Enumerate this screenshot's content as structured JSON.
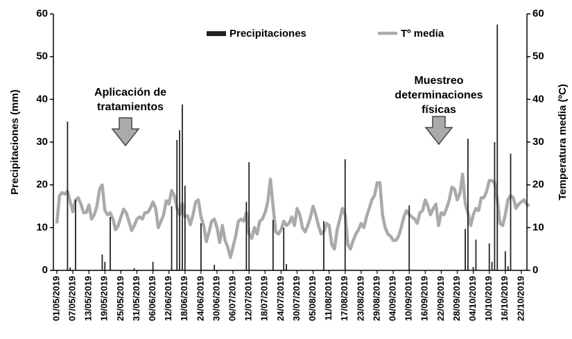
{
  "chart_data": {
    "type": "bar",
    "ylabel": "Precipitaciones (mm)",
    "y2label": "Temperatura media (ºC)",
    "ylim": [
      0,
      60
    ],
    "yticks": [
      0,
      10,
      20,
      30,
      40,
      50,
      60
    ],
    "y2lim": [
      0,
      60
    ],
    "y2ticks": [
      0,
      10,
      20,
      30,
      40,
      50,
      60
    ],
    "legend": "top",
    "annotations": [
      [
        "Aplicación de",
        "tratamientos"
      ],
      [
        "Muestreo",
        "determinaciones",
        "físicas"
      ]
    ],
    "categories": [
      "01/05/2019",
      null,
      null,
      null,
      null,
      null,
      "07/05/2019",
      null,
      null,
      null,
      null,
      null,
      "13/05/2019",
      null,
      null,
      null,
      null,
      null,
      "19/05/2019",
      null,
      null,
      null,
      null,
      null,
      "25/05/2019",
      null,
      null,
      null,
      null,
      null,
      "31/05/2019",
      null,
      null,
      null,
      null,
      null,
      "06/06/2019",
      null,
      null,
      null,
      null,
      null,
      "12/06/2019",
      null,
      null,
      null,
      null,
      null,
      "18/06/2019",
      null,
      null,
      null,
      null,
      null,
      "24/06/2019",
      null,
      null,
      null,
      null,
      null,
      "30/06/2019",
      null,
      null,
      null,
      null,
      null,
      "06/07/2019",
      null,
      null,
      null,
      null,
      null,
      "12/07/2019",
      null,
      null,
      null,
      null,
      null,
      "18/07/2019",
      null,
      null,
      null,
      null,
      null,
      "24/07/2019",
      null,
      null,
      null,
      null,
      null,
      "30/07/2019",
      null,
      null,
      null,
      null,
      null,
      "05/08/2019",
      null,
      null,
      null,
      null,
      null,
      "11/08/2019",
      null,
      null,
      null,
      null,
      null,
      "17/08/2019",
      null,
      null,
      null,
      null,
      null,
      "23/08/2019",
      null,
      null,
      null,
      null,
      null,
      "29/08/2019",
      null,
      null,
      null,
      null,
      null,
      "04/09/2019",
      null,
      null,
      null,
      null,
      null,
      "10/09/2019",
      null,
      null,
      null,
      null,
      null,
      "16/09/2019",
      null,
      null,
      null,
      null,
      null,
      "22/09/2019",
      null,
      null,
      null,
      null,
      null,
      "28/09/2019",
      null,
      null,
      null,
      null,
      null,
      "04/10/2019",
      null,
      null,
      null,
      null,
      null,
      "10/10/2019",
      null,
      null,
      null,
      null,
      null,
      "16/10/2019",
      null,
      null,
      null,
      null,
      null,
      "22/10/2019",
      null,
      null,
      null
    ],
    "series": [
      {
        "name": "Precipitaciones",
        "type": "bar",
        "axis": "y",
        "color": "#222222",
        "values": [
          0,
          0,
          0,
          0,
          34.8,
          0.7,
          0,
          16.5,
          0,
          0,
          0,
          0,
          0,
          0,
          0,
          0,
          0,
          3.7,
          2,
          0,
          12.5,
          0,
          0,
          0,
          0,
          0,
          0,
          0,
          0,
          0.5,
          0,
          0,
          0,
          0,
          0,
          0,
          2,
          0,
          0,
          0,
          0,
          0,
          0,
          15,
          0,
          30.5,
          32.8,
          38.8,
          19.8,
          0,
          0,
          0,
          0,
          0,
          11,
          0,
          0,
          0,
          0,
          1.3,
          0,
          0,
          0,
          0,
          0,
          0,
          0,
          0,
          0,
          0,
          0,
          16,
          25.3,
          0,
          0,
          0,
          0,
          0,
          0,
          0,
          0,
          11.8,
          0,
          0,
          0,
          10,
          1.5,
          0,
          0,
          0,
          0,
          0,
          0,
          0,
          0,
          0,
          0,
          0,
          0,
          0,
          11.5,
          0,
          0,
          0,
          0,
          0,
          0,
          0,
          26,
          0,
          0,
          0,
          0,
          0,
          0,
          0,
          0,
          0,
          0,
          0,
          0,
          0,
          0,
          0,
          0,
          0,
          0,
          0,
          0,
          0,
          0,
          0,
          15.2,
          0,
          0,
          0,
          0,
          0,
          0,
          0,
          0,
          0,
          0,
          0,
          0,
          0,
          0,
          0,
          0,
          0,
          0,
          0,
          0,
          9.7,
          30.8,
          0,
          0.8,
          7.2,
          0,
          0,
          0,
          0,
          6.3,
          2,
          30,
          57.5,
          0,
          0,
          4.5,
          1,
          27.3,
          0,
          0,
          0,
          0,
          0,
          0,
          0
        ]
      },
      {
        "name": "Tº media",
        "type": "line",
        "axis": "y2",
        "color": "#aaaaaa",
        "values": [
          11,
          17.5,
          18.2,
          17.8,
          18.5,
          16,
          13.7,
          16.5,
          17,
          15.5,
          13.5,
          13.5,
          15.3,
          12,
          13,
          15,
          19,
          20,
          14,
          13,
          13.5,
          12,
          9.5,
          10.5,
          12.5,
          14.3,
          13.5,
          11.5,
          9.3,
          10.5,
          12,
          12.5,
          12,
          13.5,
          13.5,
          14.5,
          16,
          14.5,
          10,
          11.5,
          13,
          16.3,
          15.5,
          18.7,
          17.5,
          14.5,
          13,
          15.7,
          12.5,
          12.8,
          10.7,
          13,
          16,
          16.5,
          12.5,
          10.5,
          6.7,
          9,
          11.5,
          12,
          10,
          6.5,
          10.5,
          7,
          5.5,
          3,
          5.5,
          8,
          11.5,
          12,
          11.5,
          13.5,
          8.5,
          7.5,
          10,
          8.5,
          11.5,
          12,
          13.5,
          16,
          21.3,
          15,
          9,
          8.5,
          9.5,
          11.5,
          10.5,
          11,
          12.5,
          10.5,
          14.5,
          13,
          10,
          9,
          10.5,
          12.5,
          15,
          13,
          10.5,
          8.5,
          9,
          11,
          10.5,
          6,
          5,
          9.5,
          12,
          14.5,
          13,
          6,
          5,
          7,
          8.5,
          9.5,
          11,
          10,
          12.5,
          14.5,
          16.5,
          17.5,
          20.5,
          20.5,
          13,
          10,
          8.5,
          8,
          7,
          7,
          8,
          10,
          12.5,
          14,
          13,
          12.5,
          12,
          11,
          13.5,
          14,
          16.5,
          15,
          13,
          14.5,
          15.5,
          10.5,
          13.5,
          13,
          14.5,
          16.5,
          19.5,
          19,
          16.5,
          18,
          22.5,
          15.5,
          13.5,
          10.5,
          13,
          14.5,
          14,
          17,
          17,
          18.5,
          21,
          21,
          20.5,
          16.5,
          11,
          10.5,
          13,
          16.5,
          17.5,
          17,
          14.5,
          15.5,
          16,
          16.5,
          15.5,
          15
        ]
      }
    ]
  }
}
